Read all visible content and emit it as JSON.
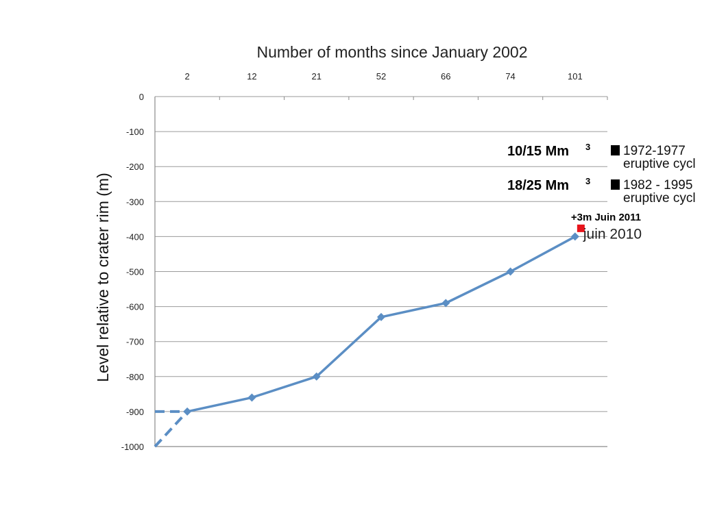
{
  "chart_data": {
    "type": "line",
    "title": "Number of months since January 2002",
    "xlabel": "",
    "ylabel": "Level relative to crater rim (m)",
    "x_axis_position": "top",
    "categories": [
      "2",
      "12",
      "21",
      "52",
      "66",
      "74",
      "101"
    ],
    "ylim": [
      -1000,
      0
    ],
    "yticks": [
      0,
      -100,
      -200,
      -300,
      -400,
      -500,
      -600,
      -700,
      -800,
      -900,
      -1000
    ],
    "grid": true,
    "series": [
      {
        "color": "#5b8ec4",
        "values": [
          -900,
          -860,
          -800,
          -630,
          -590,
          -500,
          -400
        ]
      }
    ],
    "dashed_extensions": [
      {
        "from_y": -900,
        "to_y": -900,
        "style": "horizontal",
        "color": "#5b8ec4"
      },
      {
        "from_y": -1000,
        "to_y": -900,
        "style": "rising",
        "color": "#5b8ec4"
      }
    ],
    "extra_point": {
      "label": "+3m Juin 2011",
      "value": -397,
      "marker": "square",
      "color": "#e8141b"
    },
    "point_annotation": {
      "label": "juin 2010",
      "category": "101"
    },
    "legend": [
      {
        "volume": "10/15 Mm",
        "superscript": "3",
        "line1": "1972-1977",
        "line2": "eruptive cycl"
      },
      {
        "volume": "18/25 Mm",
        "superscript": "3",
        "line1": "1982 - 1995",
        "line2": "eruptive cycl"
      }
    ]
  }
}
